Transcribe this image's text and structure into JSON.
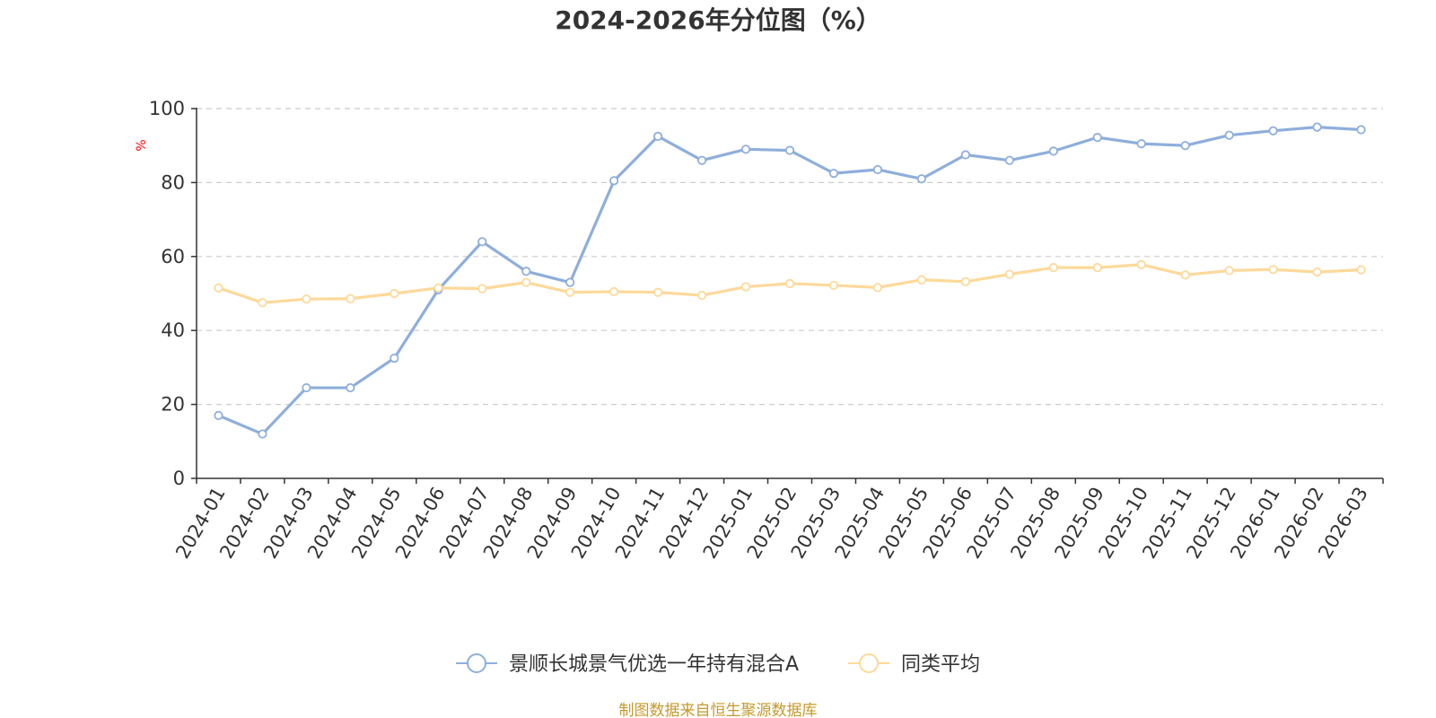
{
  "chart_data": {
    "type": "line",
    "title": "2024-2026年分位图（%）",
    "ylabel": "%",
    "ylim": [
      0,
      100
    ],
    "yticks": [
      0,
      20,
      40,
      60,
      80,
      100
    ],
    "grid": true,
    "legend_position": "bottom",
    "categories": [
      "2024-01",
      "2024-02",
      "2024-03",
      "2024-04",
      "2024-05",
      "2024-06",
      "2024-07",
      "2024-08",
      "2024-09",
      "2024-10",
      "2024-11",
      "2024-12",
      "2025-01",
      "2025-02",
      "2025-03",
      "2025-04",
      "2025-05",
      "2025-06",
      "2025-07",
      "2025-08",
      "2025-09",
      "2025-10",
      "2025-11",
      "2025-12",
      "2026-01",
      "2026-02",
      "2026-03"
    ],
    "series": [
      {
        "name": "景顺长城景气优选一年持有混合A",
        "color": "#8eaedb",
        "values": [
          17,
          12,
          24.5,
          24.5,
          32.5,
          51,
          64,
          56,
          53,
          80.5,
          92.5,
          86,
          89,
          88.7,
          82.5,
          83.5,
          81,
          87.5,
          86,
          88.5,
          92.2,
          90.5,
          90,
          92.8,
          94,
          95,
          94.3
        ]
      },
      {
        "name": "同类平均",
        "color": "#fdd99a",
        "values": [
          51.5,
          47.5,
          48.5,
          48.6,
          50,
          51.5,
          51.3,
          53,
          50.3,
          50.5,
          50.3,
          49.5,
          51.8,
          52.7,
          52.2,
          51.6,
          53.7,
          53.2,
          55.2,
          57,
          57,
          57.8,
          55,
          56.2,
          56.5,
          55.8,
          56.4
        ]
      }
    ],
    "source": "制图数据来自恒生聚源数据库"
  }
}
